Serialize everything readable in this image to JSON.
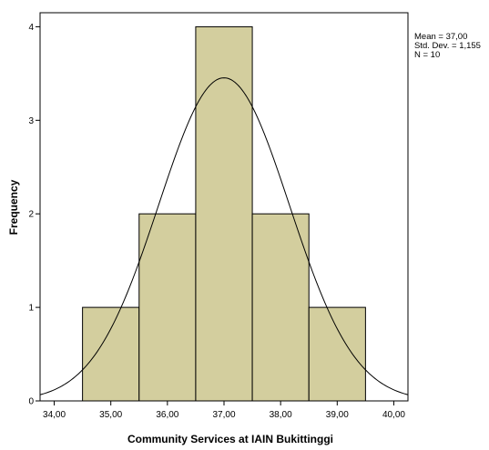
{
  "chart_data": {
    "type": "bar",
    "subtype": "histogram",
    "xlabel": "Community Services at IAIN Bukittinggi",
    "ylabel": "Frequency",
    "xlim": [
      33.75,
      40.25
    ],
    "ylim": [
      0,
      4.15
    ],
    "xticks": [
      34,
      35,
      36,
      37,
      38,
      39,
      40
    ],
    "xtick_labels": [
      "34,00",
      "35,00",
      "36,00",
      "37,00",
      "38,00",
      "39,00",
      "40,00"
    ],
    "yticks": [
      0,
      1,
      2,
      3,
      4
    ],
    "ytick_labels": [
      "0",
      "1",
      "2",
      "3",
      "4"
    ],
    "bins": [
      {
        "from": 34.5,
        "to": 35.5,
        "count": 1
      },
      {
        "from": 35.5,
        "to": 36.5,
        "count": 2
      },
      {
        "from": 36.5,
        "to": 37.5,
        "count": 4
      },
      {
        "from": 37.5,
        "to": 38.5,
        "count": 2
      },
      {
        "from": 38.5,
        "to": 39.5,
        "count": 1
      }
    ],
    "normal_curve": {
      "mean": 37.0,
      "sd": 1.155,
      "n": 10,
      "bin_width": 1
    },
    "stats": {
      "mean": "Mean = 37,00",
      "sd": "Std. Dev. = 1,155",
      "n": "N = 10"
    },
    "bar_color": "#d3ce9e",
    "grid": false,
    "legend_position": "top-right"
  }
}
